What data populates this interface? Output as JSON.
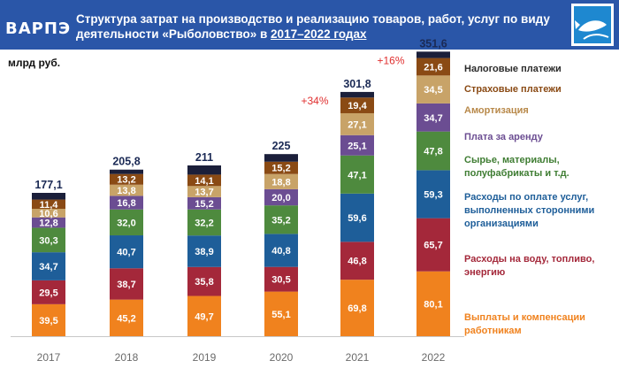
{
  "header": {
    "logo_text": "ВАРПЭ",
    "title_main": "Структура затрат на производство и реализацию товаров, работ, услуг по виду  деятельности «Рыболовство» в ",
    "title_highlight": "2017–2022 годах",
    "emblem_icon": "fish-emblem-icon"
  },
  "unit_label": "млрд руб.",
  "colors": {
    "header_bg": "#2a56a8",
    "growth": "#e03030"
  },
  "chart_data": {
    "type": "bar",
    "stacked": true,
    "title": "Структура затрат на производство и реализацию товаров, работ, услуг по виду  деятельности «Рыболовство» в 2017–2022 годах",
    "ylabel": "млрд руб.",
    "categories": [
      "2017",
      "2018",
      "2019",
      "2020",
      "2021",
      "2022"
    ],
    "totals": [
      "177,1",
      "205,8",
      "211",
      "225",
      "301,8",
      "351,6"
    ],
    "growth_annotations": [
      {
        "category": "2021",
        "text": "+34%"
      },
      {
        "category": "2022",
        "text": "+16%"
      }
    ],
    "series": [
      {
        "name": "Выплаты и компенсации работникам",
        "color": "#f0821e",
        "label_color": "#ffffff",
        "values": [
          39.5,
          45.2,
          49.7,
          55.1,
          69.8,
          80.1
        ],
        "labels": [
          "39,5",
          "45,2",
          "49,7",
          "55,1",
          "69,8",
          "80,1"
        ]
      },
      {
        "name": "Расходы на воду, топливо, энергию",
        "color": "#a4283a",
        "label_color": "#ffffff",
        "values": [
          29.5,
          38.7,
          35.8,
          30.5,
          46.8,
          65.7
        ],
        "labels": [
          "29,5",
          "38,7",
          "35,8",
          "30,5",
          "46,8",
          "65,7"
        ]
      },
      {
        "name": "Расходы по оплате услуг, выполненных сторонними организациями",
        "color": "#1e5e99",
        "label_color": "#ffffff",
        "values": [
          34.7,
          40.7,
          38.9,
          40.8,
          59.6,
          59.3
        ],
        "labels": [
          "34,7",
          "40,7",
          "38,9",
          "40,8",
          "59,6",
          "59,3"
        ]
      },
      {
        "name": "Сырье, материалы, полуфабрикаты и т.д.",
        "color": "#4e8a3e",
        "label_color": "#ffffff",
        "values": [
          30.3,
          32.0,
          32.2,
          35.2,
          47.1,
          47.8
        ],
        "labels": [
          "30,3",
          "32,0",
          "32,2",
          "35,2",
          "47,1",
          "47,8"
        ]
      },
      {
        "name": "Плата за аренду",
        "color": "#6b4d92",
        "label_color": "#ffffff",
        "values": [
          12.8,
          16.8,
          15.2,
          20.0,
          25.1,
          34.7
        ],
        "labels": [
          "12,8",
          "16,8",
          "15,2",
          "20,0",
          "25,1",
          "34,7"
        ]
      },
      {
        "name": "Амортизация",
        "color": "#c8a368",
        "label_color": "#ffffff",
        "values": [
          10.6,
          13.8,
          13.7,
          18.8,
          27.1,
          34.5
        ],
        "labels": [
          "10,6",
          "13,8",
          "13,7",
          "18,8",
          "27,1",
          "34,5"
        ]
      },
      {
        "name": "Страховые платежи",
        "color": "#8a4a14",
        "label_color": "#ffffff",
        "values": [
          11.4,
          13.2,
          14.1,
          15.2,
          19.4,
          21.6
        ],
        "labels": [
          "11,4",
          "13,2",
          "14,1",
          "15,2",
          "19,4",
          "21,6"
        ]
      },
      {
        "name": "Налоговые платежи",
        "color": "#1b1f3a",
        "label_color": "#ffffff",
        "values": [
          8.3,
          5.4,
          11.4,
          9.4,
          6.9,
          7.9
        ],
        "labels": [
          "",
          "",
          "",
          "",
          "",
          ""
        ]
      }
    ],
    "ylim": [
      0,
      352
    ],
    "grid": false,
    "legend_position": "right"
  }
}
